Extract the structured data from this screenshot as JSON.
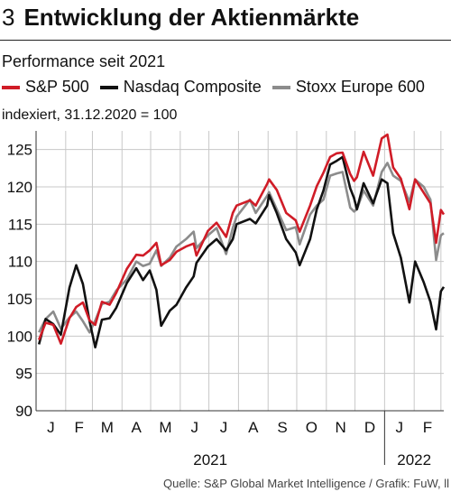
{
  "header": {
    "number": "3",
    "title": "Entwicklung der Aktienmärkte",
    "subtitle": "Performance seit 2021",
    "unit_note": "indexiert, 31.12.2020 = 100"
  },
  "source": "Quelle: S&P Global Market Intelligence / Grafik: FuW, ll",
  "chart_data": {
    "type": "line",
    "title": "Entwicklung der Aktienmärkte",
    "subtitle": "Performance seit 2021",
    "xlabel": "",
    "ylabel": "indexiert, 31.12.2020 = 100",
    "x_range": [
      "2021-01-01",
      "2022-03-04"
    ],
    "ylim": [
      90,
      127.5
    ],
    "yticks": [
      90,
      95,
      100,
      105,
      110,
      115,
      120,
      125
    ],
    "month_labels": [
      "J",
      "F",
      "M",
      "A",
      "M",
      "J",
      "J",
      "A",
      "S",
      "O",
      "N",
      "D",
      "J",
      "F"
    ],
    "year_labels": [
      "2021",
      "2022"
    ],
    "grid": true,
    "legend_position": "top",
    "series": [
      {
        "name": "S&P 500",
        "color": "#d01c27",
        "points": [
          [
            "2021-01-04",
            99.5
          ],
          [
            "2021-01-11",
            101.8
          ],
          [
            "2021-01-19",
            101.5
          ],
          [
            "2021-01-27",
            99.0
          ],
          [
            "2021-02-05",
            102.4
          ],
          [
            "2021-02-12",
            103.9
          ],
          [
            "2021-02-19",
            104.5
          ],
          [
            "2021-02-26",
            102.1
          ],
          [
            "2021-03-04",
            101.5
          ],
          [
            "2021-03-11",
            104.6
          ],
          [
            "2021-03-19",
            104.2
          ],
          [
            "2021-03-26",
            105.8
          ],
          [
            "2021-04-06",
            109.0
          ],
          [
            "2021-04-16",
            110.9
          ],
          [
            "2021-04-23",
            110.8
          ],
          [
            "2021-04-30",
            111.5
          ],
          [
            "2021-05-07",
            112.5
          ],
          [
            "2021-05-12",
            109.5
          ],
          [
            "2021-05-21",
            110.2
          ],
          [
            "2021-05-28",
            111.3
          ],
          [
            "2021-06-07",
            112.0
          ],
          [
            "2021-06-15",
            112.4
          ],
          [
            "2021-06-18",
            110.8
          ],
          [
            "2021-06-30",
            114.1
          ],
          [
            "2021-07-09",
            115.2
          ],
          [
            "2021-07-19",
            113.3
          ],
          [
            "2021-07-26",
            116.5
          ],
          [
            "2021-07-30",
            117.5
          ],
          [
            "2021-08-13",
            118.2
          ],
          [
            "2021-08-19",
            117.5
          ],
          [
            "2021-08-31",
            120.4
          ],
          [
            "2021-09-02",
            121.0
          ],
          [
            "2021-09-10",
            119.6
          ],
          [
            "2021-09-20",
            116.5
          ],
          [
            "2021-09-30",
            115.5
          ],
          [
            "2021-10-04",
            114.0
          ],
          [
            "2021-10-15",
            117.5
          ],
          [
            "2021-10-22",
            120.1
          ],
          [
            "2021-10-29",
            121.9
          ],
          [
            "2021-11-05",
            124.0
          ],
          [
            "2021-11-12",
            124.5
          ],
          [
            "2021-11-18",
            124.6
          ],
          [
            "2021-11-26",
            121.7
          ],
          [
            "2021-11-30",
            120.8
          ],
          [
            "2021-12-03",
            121.3
          ],
          [
            "2021-12-10",
            124.7
          ],
          [
            "2021-12-20",
            121.5
          ],
          [
            "2021-12-29",
            126.5
          ],
          [
            "2022-01-04",
            127.0
          ],
          [
            "2022-01-10",
            122.6
          ],
          [
            "2022-01-18",
            121.1
          ],
          [
            "2022-01-27",
            117.0
          ],
          [
            "2022-02-02",
            121.0
          ],
          [
            "2022-02-11",
            119.2
          ],
          [
            "2022-02-18",
            117.8
          ],
          [
            "2022-02-24",
            112.5
          ],
          [
            "2022-03-01",
            116.9
          ],
          [
            "2022-03-04",
            116.3
          ]
        ]
      },
      {
        "name": "Nasdaq Composite",
        "color": "#111111",
        "points": [
          [
            "2021-01-04",
            98.9
          ],
          [
            "2021-01-11",
            102.3
          ],
          [
            "2021-01-19",
            101.6
          ],
          [
            "2021-01-27",
            100.2
          ],
          [
            "2021-02-05",
            106.5
          ],
          [
            "2021-02-12",
            109.5
          ],
          [
            "2021-02-19",
            107.0
          ],
          [
            "2021-02-26",
            102.0
          ],
          [
            "2021-03-04",
            98.5
          ],
          [
            "2021-03-11",
            102.2
          ],
          [
            "2021-03-19",
            102.4
          ],
          [
            "2021-03-26",
            103.8
          ],
          [
            "2021-04-06",
            107.1
          ],
          [
            "2021-04-16",
            109.1
          ],
          [
            "2021-04-23",
            107.5
          ],
          [
            "2021-04-30",
            108.8
          ],
          [
            "2021-05-07",
            106.2
          ],
          [
            "2021-05-12",
            101.4
          ],
          [
            "2021-05-21",
            103.4
          ],
          [
            "2021-05-28",
            104.2
          ],
          [
            "2021-06-07",
            106.5
          ],
          [
            "2021-06-15",
            108.0
          ],
          [
            "2021-06-18",
            109.8
          ],
          [
            "2021-06-30",
            112.0
          ],
          [
            "2021-07-09",
            113.0
          ],
          [
            "2021-07-19",
            111.5
          ],
          [
            "2021-07-26",
            113.0
          ],
          [
            "2021-07-30",
            115.0
          ],
          [
            "2021-08-13",
            115.7
          ],
          [
            "2021-08-19",
            115.1
          ],
          [
            "2021-08-31",
            117.5
          ],
          [
            "2021-09-02",
            118.9
          ],
          [
            "2021-09-10",
            116.5
          ],
          [
            "2021-09-20",
            113.0
          ],
          [
            "2021-09-30",
            111.2
          ],
          [
            "2021-10-04",
            109.5
          ],
          [
            "2021-10-15",
            113.0
          ],
          [
            "2021-10-22",
            117.0
          ],
          [
            "2021-10-29",
            119.5
          ],
          [
            "2021-11-05",
            123.0
          ],
          [
            "2021-11-12",
            123.5
          ],
          [
            "2021-11-18",
            124.0
          ],
          [
            "2021-11-26",
            119.8
          ],
          [
            "2021-11-30",
            118.5
          ],
          [
            "2021-12-03",
            117.0
          ],
          [
            "2021-12-10",
            120.5
          ],
          [
            "2021-12-20",
            117.8
          ],
          [
            "2021-12-29",
            121.0
          ],
          [
            "2022-01-04",
            120.5
          ],
          [
            "2022-01-10",
            113.8
          ],
          [
            "2022-01-18",
            110.5
          ],
          [
            "2022-01-27",
            104.5
          ],
          [
            "2022-02-02",
            110.0
          ],
          [
            "2022-02-11",
            107.2
          ],
          [
            "2022-02-18",
            104.6
          ],
          [
            "2022-02-24",
            100.9
          ],
          [
            "2022-03-01",
            106.0
          ],
          [
            "2022-03-04",
            106.6
          ]
        ]
      },
      {
        "name": "Stoxx Europe 600",
        "color": "#8c8c8c",
        "points": [
          [
            "2021-01-04",
            100.5
          ],
          [
            "2021-01-11",
            102.3
          ],
          [
            "2021-01-19",
            103.3
          ],
          [
            "2021-01-27",
            101.0
          ],
          [
            "2021-02-05",
            102.5
          ],
          [
            "2021-02-12",
            103.3
          ],
          [
            "2021-02-19",
            102.0
          ],
          [
            "2021-02-26",
            100.5
          ],
          [
            "2021-03-04",
            102.1
          ],
          [
            "2021-03-11",
            104.3
          ],
          [
            "2021-03-19",
            104.6
          ],
          [
            "2021-03-26",
            106.1
          ],
          [
            "2021-04-06",
            107.6
          ],
          [
            "2021-04-16",
            110.0
          ],
          [
            "2021-04-23",
            109.4
          ],
          [
            "2021-04-30",
            109.7
          ],
          [
            "2021-05-07",
            111.5
          ],
          [
            "2021-05-12",
            109.4
          ],
          [
            "2021-05-21",
            110.5
          ],
          [
            "2021-05-28",
            112.0
          ],
          [
            "2021-06-07",
            113.0
          ],
          [
            "2021-06-15",
            114.0
          ],
          [
            "2021-06-18",
            111.8
          ],
          [
            "2021-06-30",
            113.5
          ],
          [
            "2021-07-09",
            114.5
          ],
          [
            "2021-07-19",
            111.0
          ],
          [
            "2021-07-26",
            114.5
          ],
          [
            "2021-07-30",
            116.0
          ],
          [
            "2021-08-13",
            118.3
          ],
          [
            "2021-08-19",
            116.5
          ],
          [
            "2021-08-31",
            118.8
          ],
          [
            "2021-09-02",
            119.3
          ],
          [
            "2021-09-10",
            117.0
          ],
          [
            "2021-09-20",
            114.2
          ],
          [
            "2021-09-30",
            114.6
          ],
          [
            "2021-10-04",
            112.3
          ],
          [
            "2021-10-15",
            116.3
          ],
          [
            "2021-10-22",
            117.5
          ],
          [
            "2021-10-29",
            118.3
          ],
          [
            "2021-11-05",
            121.5
          ],
          [
            "2021-11-12",
            121.8
          ],
          [
            "2021-11-18",
            122.0
          ],
          [
            "2021-11-26",
            117.2
          ],
          [
            "2021-11-30",
            116.7
          ],
          [
            "2021-12-03",
            117.0
          ],
          [
            "2021-12-10",
            119.5
          ],
          [
            "2021-12-20",
            117.5
          ],
          [
            "2021-12-29",
            122.0
          ],
          [
            "2022-01-04",
            123.2
          ],
          [
            "2022-01-10",
            121.5
          ],
          [
            "2022-01-18",
            120.8
          ],
          [
            "2022-01-27",
            118.0
          ],
          [
            "2022-02-02",
            121.0
          ],
          [
            "2022-02-11",
            120.0
          ],
          [
            "2022-02-18",
            118.3
          ],
          [
            "2022-02-24",
            110.2
          ],
          [
            "2022-03-01",
            113.5
          ],
          [
            "2022-03-04",
            113.8
          ]
        ]
      }
    ]
  }
}
